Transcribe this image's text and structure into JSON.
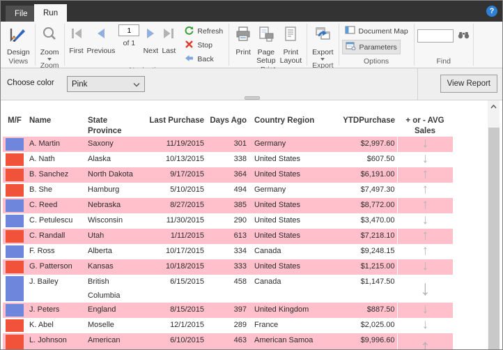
{
  "window": {
    "help": "?"
  },
  "tabs": {
    "file": "File",
    "run": "Run"
  },
  "ribbon": {
    "views": {
      "label": "Views",
      "design": "Design"
    },
    "zoom": {
      "label": "Zoom",
      "zoom": "Zoom"
    },
    "navigation": {
      "label": "Navigation",
      "first": "First",
      "previous": "Previous",
      "page_value": "1",
      "page_of": "of  1",
      "next": "Next",
      "last": "Last",
      "refresh": "Refresh",
      "stop": "Stop",
      "back": "Back"
    },
    "print": {
      "label": "Print",
      "print": "Print",
      "page_setup": "Page\nSetup",
      "print_layout": "Print\nLayout"
    },
    "export": {
      "label": "Export",
      "export": "Export"
    },
    "options": {
      "label": "Options",
      "document_map": "Document Map",
      "parameters": "Parameters"
    },
    "find": {
      "label": "Find"
    }
  },
  "parameter_bar": {
    "label": "Choose color",
    "selected_value": "Pink",
    "view_report": "View Report"
  },
  "report_table": {
    "columns": [
      "M/F",
      "Name",
      "State Province",
      "Last Purchase",
      "Days Ago",
      "Country Region",
      "YTDPurchase",
      "+ or - AVG Sales"
    ],
    "rows": [
      {
        "box": "blue",
        "name": "A. Martin",
        "state": "Saxony",
        "last_purchase": "11/19/2015",
        "days_ago": "301",
        "country": "Germany",
        "ytd": "$2,997.60",
        "trend": "down"
      },
      {
        "box": "red",
        "name": "A. Nath",
        "state": "Alaska",
        "last_purchase": "10/13/2015",
        "days_ago": "338",
        "country": "United States",
        "ytd": "$607.50",
        "trend": "down"
      },
      {
        "box": "red",
        "name": "B. Sanchez",
        "state": "North Dakota",
        "last_purchase": "9/17/2015",
        "days_ago": "364",
        "country": "United States",
        "ytd": "$6,191.00",
        "trend": "up"
      },
      {
        "box": "red",
        "name": "B. She",
        "state": "Hamburg",
        "last_purchase": "5/10/2015",
        "days_ago": "494",
        "country": "Germany",
        "ytd": "$7,497.30",
        "trend": "up"
      },
      {
        "box": "blue",
        "name": "C. Reed",
        "state": "Nebraska",
        "last_purchase": "8/27/2015",
        "days_ago": "385",
        "country": "United States",
        "ytd": "$8,772.00",
        "trend": "up"
      },
      {
        "box": "blue",
        "name": "C. Petulescu",
        "state": "Wisconsin",
        "last_purchase": "11/30/2015",
        "days_ago": "290",
        "country": "United States",
        "ytd": "$3,470.00",
        "trend": "down"
      },
      {
        "box": "red",
        "name": "C. Randall",
        "state": "Utah",
        "last_purchase": "1/11/2015",
        "days_ago": "613",
        "country": "United States",
        "ytd": "$7,218.10",
        "trend": "up"
      },
      {
        "box": "blue",
        "name": "F. Ross",
        "state": "Alberta",
        "last_purchase": "10/17/2015",
        "days_ago": "334",
        "country": "Canada",
        "ytd": "$9,248.15",
        "trend": "up"
      },
      {
        "box": "red",
        "name": "G. Patterson",
        "state": "Kansas",
        "last_purchase": "10/18/2015",
        "days_ago": "333",
        "country": "United States",
        "ytd": "$1,215.00",
        "trend": "down"
      },
      {
        "box": "blue",
        "name": "J. Bailey",
        "state": "British Columbia",
        "last_purchase": "6/15/2015",
        "days_ago": "458",
        "country": "Canada",
        "ytd": "$1,147.50",
        "trend": "down"
      },
      {
        "box": "blue",
        "name": "J. Peters",
        "state": "England",
        "last_purchase": "8/15/2015",
        "days_ago": "397",
        "country": "United Kingdom",
        "ytd": "$887.50",
        "trend": "down"
      },
      {
        "box": "red",
        "name": "K. Abel",
        "state": "Moselle",
        "last_purchase": "12/1/2015",
        "days_ago": "289",
        "country": "France",
        "ytd": "$2,025.00",
        "trend": "down"
      },
      {
        "box": "red",
        "name": "L. Johnson",
        "state": "American Samoa",
        "last_purchase": "6/10/2015",
        "days_ago": "463",
        "country": "American Samoa",
        "ytd": "$9,996.60",
        "trend": "up"
      }
    ],
    "trend_glyphs": {
      "up": "↑",
      "down": "↓"
    }
  },
  "colors": {
    "pink_row": "#FFC0CB",
    "mf_blue": "#6E87DC",
    "mf_red": "#F0533A",
    "trend_arrow": "#B4B4B4",
    "titlebar": "#333333",
    "help_blue": "#2F80D4"
  }
}
